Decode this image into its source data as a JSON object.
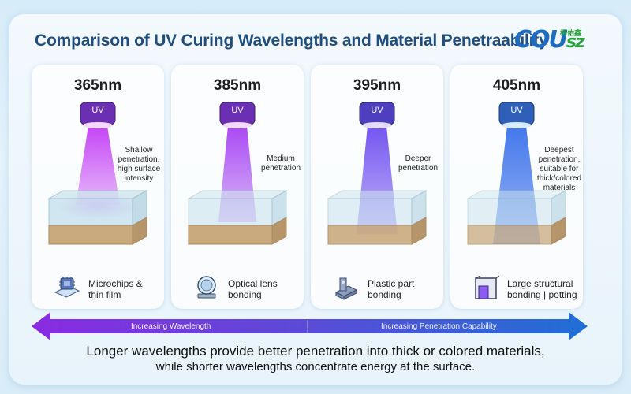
{
  "title": "Comparison of UV Curing Wavelengths and Material Penetraability",
  "logo": {
    "latin_main": "COU",
    "latin_suffix": "sz",
    "cn": "柯佑鑫"
  },
  "cards": [
    {
      "wavelength": "365nm",
      "uv_label": "UV",
      "description": "Shallow penetration, high surface intensity",
      "application": "Microchips & thin film",
      "icon": "microchip-icon",
      "beam_color": "#b52bf0"
    },
    {
      "wavelength": "385nm",
      "uv_label": "UV",
      "description": "Medium penetration",
      "application": "Optical lens bonding",
      "icon": "lens-icon",
      "beam_color": "#9a3ef0"
    },
    {
      "wavelength": "395nm",
      "uv_label": "UV",
      "description": "Deeper penetration",
      "application": "Plastic part bonding",
      "icon": "plastic-part-icon",
      "beam_color": "#6a48ee"
    },
    {
      "wavelength": "405nm",
      "uv_label": "UV",
      "description": "Deepest penetration, suitable for thick/colored materials",
      "application": "Large structural bonding | potting",
      "icon": "structure-icon",
      "beam_color": "#3f6fe6"
    }
  ],
  "arrow": {
    "left_label": "Increasing Wavelength",
    "right_label": "Increasing Penetration Capability"
  },
  "footer": {
    "line1": "Longer wavelengths provide better penetration into thick or colored materials,",
    "line2": "while shorter wavelengths concentrate energy at the surface."
  },
  "colors": {
    "title": "#1f4d7e",
    "arrow_start": "#8a2be2",
    "arrow_end": "#1f6fd6"
  }
}
